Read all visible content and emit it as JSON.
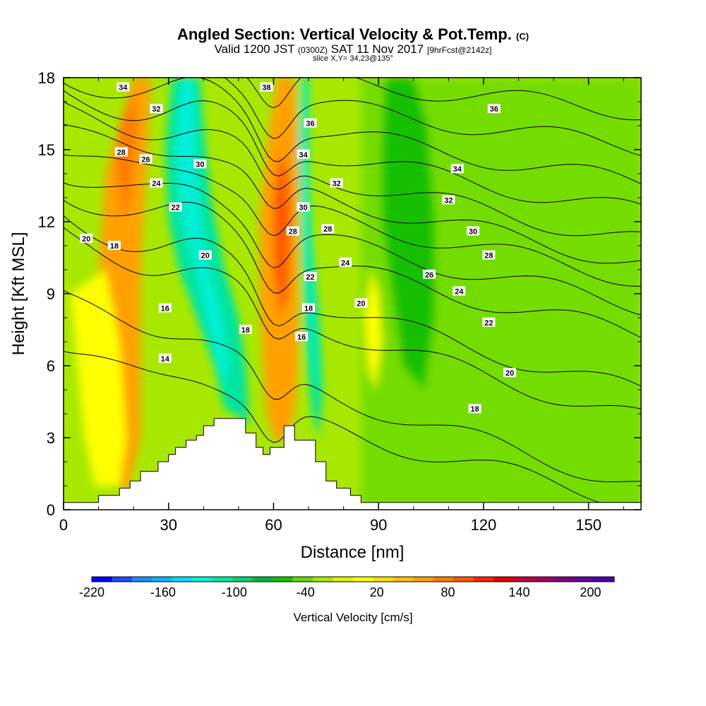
{
  "chart_data": {
    "type": "heatmap",
    "title": "Angled Section: Vertical Velocity & Pot.Temp.",
    "title_unit": "(C)",
    "subtitle_valid": "Valid 1200 JST",
    "subtitle_z": "(0300Z)",
    "subtitle_date": "SAT 11 Nov 2017",
    "subtitle_fcst": "[9hrFcst@2142z]",
    "subtitle2": "slice X,Y= 34,23@135°",
    "xlabel": "Distance [nm]",
    "ylabel": "Height [Kft MSL]",
    "xlim": [
      0,
      165
    ],
    "ylim": [
      0,
      18
    ],
    "x_ticks": [
      0,
      30,
      60,
      90,
      120,
      150
    ],
    "y_ticks": [
      0,
      3,
      6,
      9,
      12,
      15,
      18
    ],
    "colorbar": {
      "label": "Vertical Velocity [cm/s]",
      "range": [
        -220,
        220
      ],
      "step": 20,
      "tick_labels": [
        -220,
        -160,
        -100,
        -40,
        20,
        80,
        140,
        200
      ],
      "colors": [
        "#0000ff",
        "#1e4cff",
        "#1e8cff",
        "#00b4ff",
        "#00dcff",
        "#00f0d8",
        "#00e4a0",
        "#00d070",
        "#00b43c",
        "#14c000",
        "#64d800",
        "#a8e800",
        "#dcf000",
        "#ffff00",
        "#ffe000",
        "#ffc000",
        "#ffa000",
        "#ff7c00",
        "#ff5800",
        "#f02800",
        "#e00000",
        "#c0003c",
        "#a00064",
        "#800080",
        "#60009c",
        "#4c00a8"
      ]
    },
    "terrain_profile": {
      "x": [
        0,
        10,
        10,
        16,
        16,
        19,
        19,
        22,
        22,
        27,
        27,
        30,
        30,
        32,
        32,
        35,
        35,
        38,
        38,
        40,
        40,
        43,
        43,
        47,
        47,
        52,
        52,
        55,
        55,
        57,
        57,
        59,
        59,
        62,
        62,
        63,
        63,
        66,
        66,
        72,
        72,
        75,
        75,
        78,
        78,
        82,
        82,
        85,
        85,
        90,
        90
      ],
      "y": [
        0.3,
        0.3,
        0.6,
        0.6,
        0.9,
        0.9,
        1.2,
        1.2,
        1.6,
        1.6,
        2.0,
        2.0,
        2.3,
        2.3,
        2.6,
        2.6,
        2.9,
        2.9,
        3.1,
        3.1,
        3.5,
        3.5,
        3.8,
        3.8,
        3.8,
        3.8,
        3.2,
        3.2,
        2.6,
        2.6,
        2.3,
        2.3,
        2.6,
        2.6,
        2.6,
        2.6,
        3.5,
        3.5,
        2.9,
        2.9,
        2.0,
        2.0,
        1.2,
        1.2,
        0.9,
        0.9,
        0.6,
        0.6,
        0.3,
        0.3,
        0.3
      ]
    },
    "velocity_regions": [
      {
        "value": 100,
        "points": [
          [
            20,
            18
          ],
          [
            12,
            14
          ],
          [
            10,
            10
          ],
          [
            11,
            6
          ],
          [
            12,
            2
          ],
          [
            18,
            0.6
          ],
          [
            22,
            3
          ],
          [
            22,
            10
          ],
          [
            24,
            15
          ],
          [
            25,
            18
          ]
        ]
      },
      {
        "value": 120,
        "points": [
          [
            16,
            16
          ],
          [
            15,
            14.5
          ],
          [
            17,
            12
          ],
          [
            19,
            13
          ],
          [
            21,
            16
          ],
          [
            20,
            17.5
          ]
        ]
      },
      {
        "value": -90,
        "points": [
          [
            31,
            18
          ],
          [
            29,
            15
          ],
          [
            30,
            12
          ],
          [
            33,
            10
          ],
          [
            38,
            8
          ],
          [
            43,
            6
          ],
          [
            46,
            4.2
          ],
          [
            49,
            4
          ],
          [
            53,
            3.5
          ],
          [
            52,
            6
          ],
          [
            50,
            8
          ],
          [
            46,
            10
          ],
          [
            42,
            13
          ],
          [
            40,
            16
          ],
          [
            39,
            18
          ]
        ]
      },
      {
        "value": -120,
        "points": [
          [
            34,
            18
          ],
          [
            32,
            15
          ],
          [
            34,
            12
          ],
          [
            38,
            10
          ],
          [
            41,
            8
          ],
          [
            44,
            6
          ],
          [
            46,
            5
          ],
          [
            47,
            6
          ],
          [
            45,
            8
          ],
          [
            40,
            11
          ],
          [
            38,
            14
          ],
          [
            37,
            18
          ]
        ]
      },
      {
        "value": 110,
        "points": [
          [
            61,
            18
          ],
          [
            58,
            15
          ],
          [
            56,
            12
          ],
          [
            56,
            9
          ],
          [
            57,
            6
          ],
          [
            58,
            4
          ],
          [
            60,
            3
          ],
          [
            63,
            2.8
          ],
          [
            66,
            4
          ],
          [
            67,
            6
          ],
          [
            67,
            9
          ],
          [
            67,
            12
          ],
          [
            67,
            15
          ],
          [
            66,
            18
          ]
        ]
      },
      {
        "value": 140,
        "points": [
          [
            62,
            15
          ],
          [
            60,
            13
          ],
          [
            60,
            10
          ],
          [
            62,
            8
          ],
          [
            64,
            9
          ],
          [
            65,
            12
          ],
          [
            64,
            14
          ]
        ]
      },
      {
        "value": -90,
        "points": [
          [
            68,
            18
          ],
          [
            67,
            15
          ],
          [
            68,
            11
          ],
          [
            69,
            7
          ],
          [
            71,
            4
          ],
          [
            73,
            3
          ],
          [
            74,
            5
          ],
          [
            73,
            8
          ],
          [
            71,
            11
          ],
          [
            70,
            14
          ],
          [
            70,
            18
          ]
        ]
      },
      {
        "value": -110,
        "points": [
          [
            68.5,
            18
          ],
          [
            68.2,
            15
          ],
          [
            69.5,
            10
          ],
          [
            71,
            7
          ],
          [
            71.8,
            5
          ],
          [
            72.4,
            6
          ],
          [
            71,
            10
          ],
          [
            70,
            14
          ],
          [
            69.5,
            18
          ]
        ]
      },
      {
        "value": -60,
        "points": [
          [
            97,
            14
          ],
          [
            96,
            11
          ],
          [
            97,
            9
          ],
          [
            99,
            7
          ],
          [
            102,
            7
          ],
          [
            104,
            9
          ],
          [
            104,
            12
          ],
          [
            101,
            14
          ],
          [
            99,
            15
          ]
        ]
      },
      {
        "value": -40,
        "points": [
          [
            92,
            18
          ],
          [
            91,
            15
          ],
          [
            91,
            12
          ],
          [
            94,
            9
          ],
          [
            97,
            6
          ],
          [
            103,
            5
          ],
          [
            106,
            8
          ],
          [
            106,
            12
          ],
          [
            104,
            16
          ],
          [
            100,
            18
          ]
        ]
      },
      {
        "value": 50,
        "points": [
          [
            2,
            9
          ],
          [
            4,
            6
          ],
          [
            6,
            3
          ],
          [
            9,
            1
          ],
          [
            16,
            1
          ],
          [
            18,
            3
          ],
          [
            16,
            7
          ],
          [
            12,
            10
          ]
        ]
      },
      {
        "value": 50,
        "points": [
          [
            86,
            8
          ],
          [
            87,
            6
          ],
          [
            89,
            5
          ],
          [
            91,
            7
          ],
          [
            90,
            9
          ],
          [
            88,
            10
          ]
        ]
      }
    ],
    "theta_contours": [
      {
        "level": 14,
        "label_x": 29,
        "label_y": 6.3,
        "y_left": 6.6,
        "y_right": 0.3
      },
      {
        "level": 16,
        "label_x": 29,
        "label_y": 8.4,
        "y_left": 8.8,
        "y_right": 1.0
      },
      {
        "level": 18,
        "label_x": 13.5,
        "label_y": 11.1,
        "y_left": 11.4,
        "y_right": 3.8
      },
      {
        "level": 20,
        "label_x": 6.5,
        "label_y": 11.3,
        "y_left": 12.2,
        "y_right": 4.9
      },
      {
        "level": 22,
        "label_x": 32,
        "label_y": 12.5,
        "y_left": 13.2,
        "y_right": 7.3
      },
      {
        "level": 24,
        "label_x": 27,
        "label_y": 13.4,
        "y_left": 14.0,
        "y_right": 8.5
      },
      {
        "level": 26,
        "label_x": 23.5,
        "label_y": 14.7,
        "y_left": 14.9,
        "y_right": 9.6
      },
      {
        "level": 28,
        "label_x": 16.5,
        "label_y": 14.9,
        "y_left": 15.8,
        "y_right": 10.3
      },
      {
        "level": 30,
        "label_x": 39,
        "label_y": 14.4,
        "y_left": 16.6,
        "y_right": 11.2
      },
      {
        "level": 32,
        "label_x": 27,
        "label_y": 16.7,
        "y_left": 17.3,
        "y_right": 12.4
      },
      {
        "level": 34,
        "label_x": 17,
        "label_y": 17.6,
        "y_left": 18.0,
        "y_right": 13.6
      },
      {
        "level": 36,
        "label_x": 123,
        "label_y": 16.7,
        "y_left": 18.6,
        "y_right": 15.1
      },
      {
        "level": 38,
        "label_x": 58,
        "label_y": 17.6,
        "y_left": 19.2,
        "y_right": 16.6
      }
    ],
    "contour_labels": [
      {
        "text": "34",
        "x": 17,
        "y": 17.6
      },
      {
        "text": "38",
        "x": 58,
        "y": 17.6
      },
      {
        "text": "32",
        "x": 26.5,
        "y": 16.7
      },
      {
        "text": "36",
        "x": 70.5,
        "y": 16.1
      },
      {
        "text": "36",
        "x": 123,
        "y": 16.7
      },
      {
        "text": "28",
        "x": 16.5,
        "y": 14.9
      },
      {
        "text": "26",
        "x": 23.5,
        "y": 14.6
      },
      {
        "text": "30",
        "x": 39,
        "y": 14.4
      },
      {
        "text": "34",
        "x": 68.5,
        "y": 14.8
      },
      {
        "text": "34",
        "x": 112.5,
        "y": 14.2
      },
      {
        "text": "24",
        "x": 26.5,
        "y": 13.6
      },
      {
        "text": "32",
        "x": 78,
        "y": 13.6
      },
      {
        "text": "32",
        "x": 110,
        "y": 12.9
      },
      {
        "text": "22",
        "x": 32,
        "y": 12.6
      },
      {
        "text": "30",
        "x": 68.5,
        "y": 12.6
      },
      {
        "text": "28",
        "x": 65.5,
        "y": 11.6
      },
      {
        "text": "28",
        "x": 75.5,
        "y": 11.7
      },
      {
        "text": "30",
        "x": 117,
        "y": 11.6
      },
      {
        "text": "20",
        "x": 6.5,
        "y": 11.3
      },
      {
        "text": "18",
        "x": 14.5,
        "y": 11.0
      },
      {
        "text": "20",
        "x": 40.5,
        "y": 10.6
      },
      {
        "text": "24",
        "x": 80.5,
        "y": 10.3
      },
      {
        "text": "28",
        "x": 121.5,
        "y": 10.6
      },
      {
        "text": "26",
        "x": 104.5,
        "y": 9.8
      },
      {
        "text": "22",
        "x": 70.5,
        "y": 9.7
      },
      {
        "text": "24",
        "x": 113,
        "y": 9.1
      },
      {
        "text": "20",
        "x": 85,
        "y": 8.6
      },
      {
        "text": "18",
        "x": 70,
        "y": 8.4
      },
      {
        "text": "16",
        "x": 29,
        "y": 8.4
      },
      {
        "text": "22",
        "x": 121.5,
        "y": 7.8
      },
      {
        "text": "18",
        "x": 52,
        "y": 7.5
      },
      {
        "text": "16",
        "x": 68,
        "y": 7.2
      },
      {
        "text": "14",
        "x": 29,
        "y": 6.3
      },
      {
        "text": "20",
        "x": 127.5,
        "y": 5.7
      },
      {
        "text": "18",
        "x": 117.5,
        "y": 4.2
      }
    ]
  }
}
